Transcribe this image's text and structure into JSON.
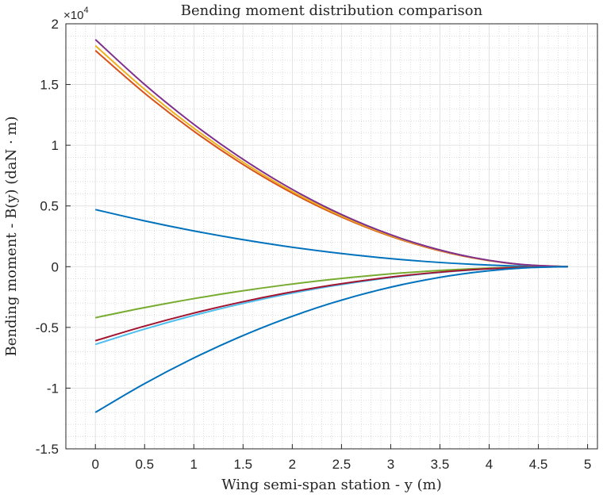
{
  "chart_data": {
    "type": "line",
    "title": "Bending moment distribution comparison",
    "xlabel": "Wing semi-span station - y (m)",
    "ylabel": "Bending moment - B(y) (daN · m)",
    "xlim": [
      -0.3,
      5.1
    ],
    "ylim": [
      -15000,
      20000
    ],
    "y_exponent_label": {
      "base": "×10",
      "power": "4"
    },
    "x_ticks": [
      0,
      0.5,
      1,
      1.5,
      2,
      2.5,
      3,
      3.5,
      4,
      4.5,
      5
    ],
    "x_tick_labels": [
      "0",
      "0.5",
      "1",
      "1.5",
      "2",
      "2.5",
      "3",
      "3.5",
      "4",
      "4.5",
      "5"
    ],
    "y_ticks": [
      -15000,
      -10000,
      -5000,
      0,
      5000,
      10000,
      15000,
      20000
    ],
    "y_tick_labels": [
      "-1.5",
      "-1",
      "-0.5",
      "0",
      "0.5",
      "1",
      "1.5",
      "2"
    ],
    "grid": true,
    "minor_grid": true,
    "legend": "none",
    "x": [
      0,
      0.48,
      0.96,
      1.44,
      1.92,
      2.4,
      2.88,
      3.36,
      3.84,
      4.32,
      4.8
    ],
    "series": [
      {
        "color": "#0072BD",
        "values": [
          4700,
          3807,
          3008,
          2303,
          1692,
          1175,
          752,
          423,
          188,
          47,
          0
        ]
      },
      {
        "color": "#D95319",
        "values": [
          17800,
          14418,
          11392,
          8722,
          6408,
          4450,
          2848,
          1602,
          712,
          178,
          0
        ]
      },
      {
        "color": "#EDB120",
        "values": [
          18200,
          14742,
          11648,
          8918,
          6552,
          4550,
          2912,
          1638,
          728,
          182,
          0
        ]
      },
      {
        "color": "#7E2F8E",
        "values": [
          18700,
          15147,
          11968,
          9163,
          6732,
          4675,
          2992,
          1683,
          748,
          187,
          0
        ]
      },
      {
        "color": "#77AC30",
        "values": [
          -4200,
          -3402,
          -2688,
          -2058,
          -1512,
          -1050,
          -672,
          -378,
          -168,
          -42,
          0
        ]
      },
      {
        "color": "#4DBEEE",
        "values": [
          -6400,
          -5184,
          -4096,
          -3136,
          -2304,
          -1600,
          -1024,
          -576,
          -256,
          -64,
          0
        ]
      },
      {
        "color": "#A2142F",
        "values": [
          -6100,
          -4941,
          -3904,
          -2989,
          -2196,
          -1525,
          -976,
          -549,
          -244,
          -61,
          0
        ]
      },
      {
        "color": "#0072BD",
        "values": [
          -12000,
          -9720,
          -7680,
          -5880,
          -4320,
          -3000,
          -1920,
          -1080,
          -480,
          -120,
          0
        ]
      }
    ]
  }
}
